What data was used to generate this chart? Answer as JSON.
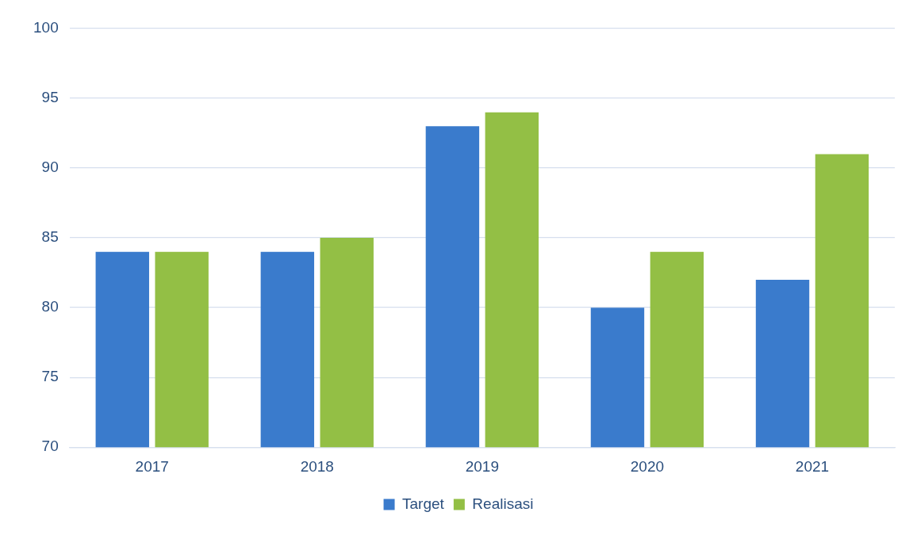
{
  "chart_data": {
    "type": "bar",
    "categories": [
      "2017",
      "2018",
      "2019",
      "2020",
      "2021"
    ],
    "series": [
      {
        "name": "Target",
        "color": "#3a7bcc",
        "values": [
          84,
          84,
          93,
          80,
          82
        ]
      },
      {
        "name": "Realisasi",
        "color": "#93bf45",
        "values": [
          84,
          85,
          94,
          84,
          91
        ]
      }
    ],
    "ylim": [
      70,
      100
    ],
    "yticks": [
      70,
      75,
      80,
      85,
      90,
      95,
      100
    ],
    "grid": "y",
    "legend": "bottom"
  }
}
